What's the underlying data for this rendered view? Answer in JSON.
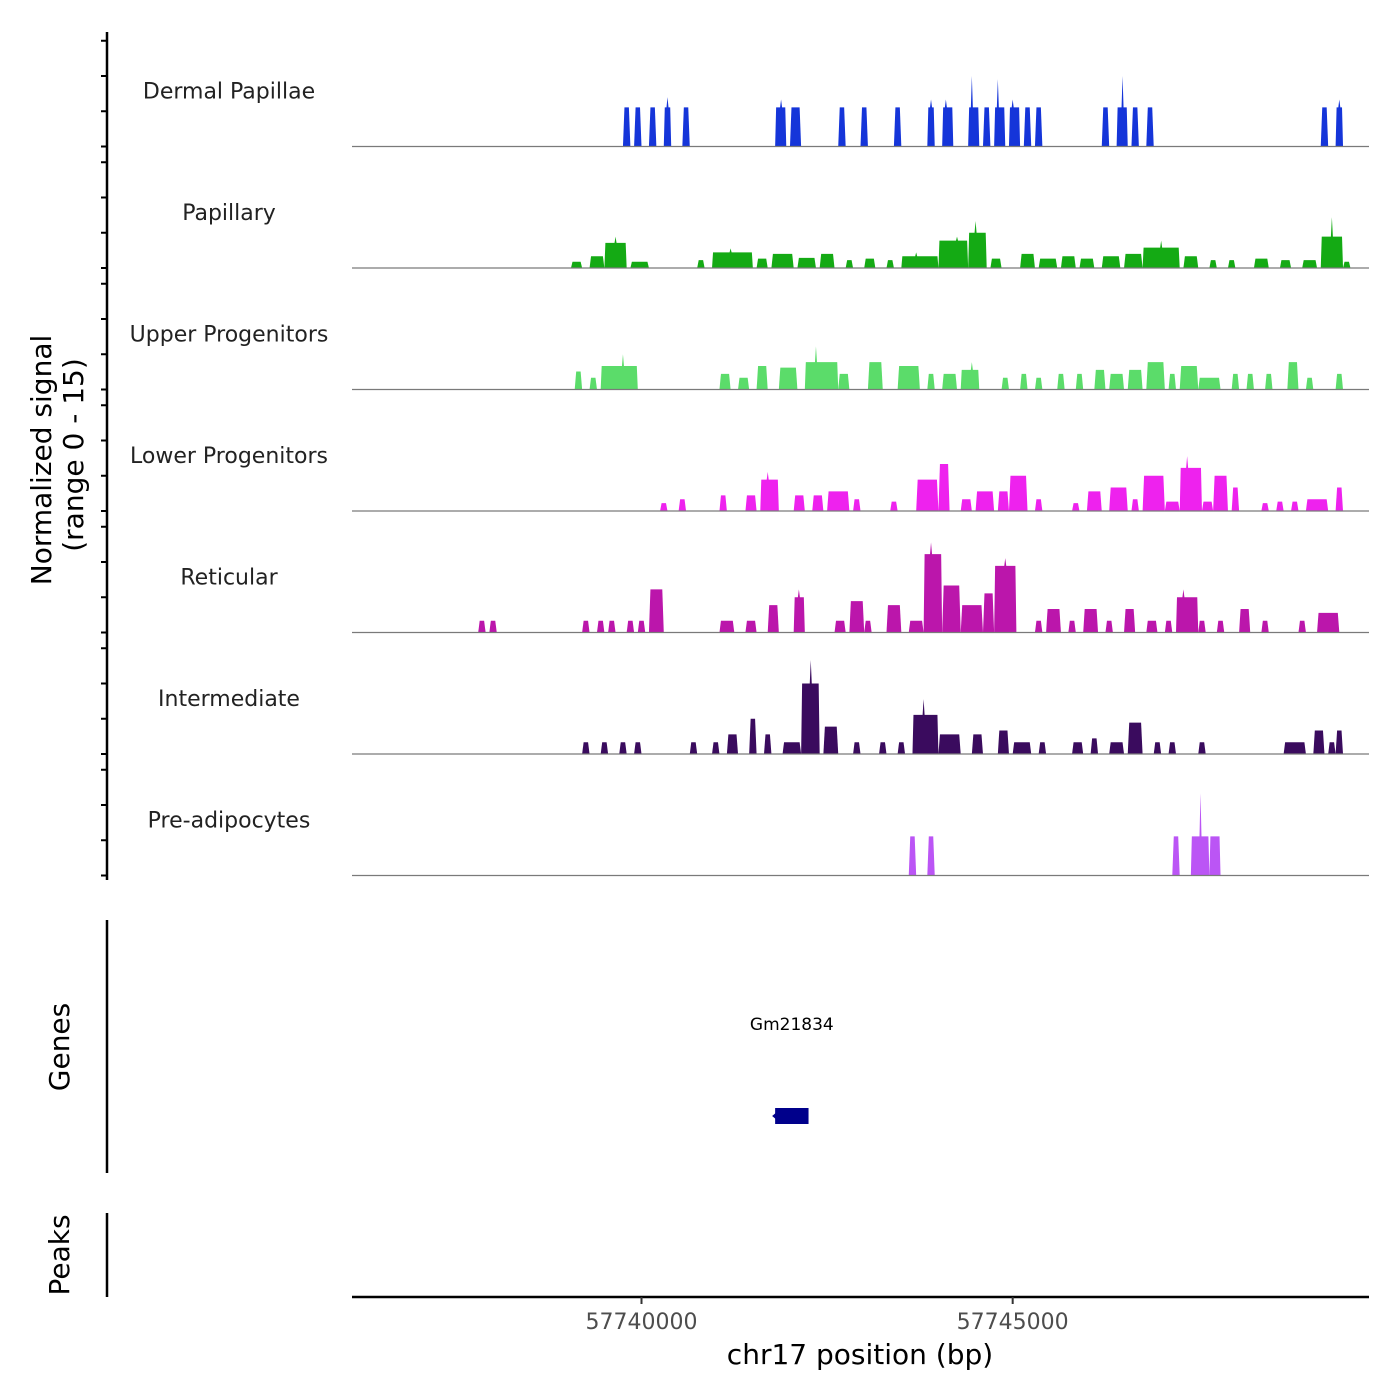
{
  "chart_data": {
    "type": "area",
    "title": "",
    "ylabel_line1": "Normalized signal",
    "ylabel_line2": "(range 0 - 15)",
    "xlabel": "chr17 position (bp)",
    "xlim": [
      57736100,
      57749800
    ],
    "ylim": [
      0,
      15
    ],
    "x_ticks": [
      57740000,
      57745000
    ],
    "x_tick_labels": [
      "57740000",
      "57745000"
    ],
    "tracks": [
      {
        "name": "Dermal Papillae",
        "color": "#1535d9",
        "segments": [
          [
            57739750,
            57739850,
            5
          ],
          [
            57739900,
            57740000,
            5
          ],
          [
            57740100,
            57740200,
            5
          ],
          [
            57740300,
            57740400,
            5,
            57740350,
            6.3
          ],
          [
            57740550,
            57740650,
            5
          ],
          [
            57741800,
            57741950,
            5,
            57741880,
            6
          ],
          [
            57742000,
            57742150,
            5
          ],
          [
            57742650,
            57742750,
            5
          ],
          [
            57742950,
            57743050,
            5
          ],
          [
            57743400,
            57743500,
            5
          ],
          [
            57743850,
            57743950,
            5,
            57743900,
            6
          ],
          [
            57744050,
            57744200,
            5,
            57744100,
            6
          ],
          [
            57744400,
            57744550,
            5,
            57744450,
            9
          ],
          [
            57744600,
            57744700,
            5
          ],
          [
            57744750,
            57744900,
            5,
            57744800,
            8.6
          ],
          [
            57744950,
            57745100,
            5,
            57745000,
            6
          ],
          [
            57745150,
            57745250,
            5
          ],
          [
            57745300,
            57745400,
            5
          ],
          [
            57746200,
            57746300,
            5
          ],
          [
            57746400,
            57746550,
            5,
            57746480,
            9
          ],
          [
            57746600,
            57746700,
            5
          ],
          [
            57746800,
            57746900,
            5
          ],
          [
            57749150,
            57749250,
            5
          ],
          [
            57749350,
            57749450,
            5,
            57749400,
            6
          ]
        ]
      },
      {
        "name": "Papillary",
        "color": "#14aa14",
        "segments": [
          [
            57739050,
            57739200,
            0.8
          ],
          [
            57739300,
            57739500,
            1.5
          ],
          [
            57739500,
            57739800,
            3.2,
            57739650,
            4
          ],
          [
            57739850,
            57740100,
            0.8
          ],
          [
            57740750,
            57740850,
            1
          ],
          [
            57740950,
            57741500,
            2,
            57741200,
            2.5
          ],
          [
            57741550,
            57741700,
            1.2
          ],
          [
            57741750,
            57742050,
            1.8
          ],
          [
            57742100,
            57742350,
            1.3
          ],
          [
            57742400,
            57742600,
            1.8
          ],
          [
            57742750,
            57742850,
            1
          ],
          [
            57743000,
            57743150,
            1.2
          ],
          [
            57743300,
            57743400,
            1
          ],
          [
            57743500,
            57744000,
            1.5,
            57743700,
            2
          ],
          [
            57744000,
            57744400,
            3.5,
            57744250,
            4
          ],
          [
            57744400,
            57744650,
            4.5,
            57744500,
            6
          ],
          [
            57744700,
            57744850,
            1.2
          ],
          [
            57745100,
            57745300,
            1.8
          ],
          [
            57745350,
            57745600,
            1.2
          ],
          [
            57745650,
            57745850,
            1.5
          ],
          [
            57745900,
            57746100,
            1.2
          ],
          [
            57746200,
            57746450,
            1.5
          ],
          [
            57746500,
            57746750,
            1.8
          ],
          [
            57746750,
            57747250,
            2.6,
            57747000,
            3.5
          ],
          [
            57747300,
            57747500,
            1.5
          ],
          [
            57747650,
            57747750,
            1
          ],
          [
            57747900,
            57748000,
            1
          ],
          [
            57748250,
            57748450,
            1.2
          ],
          [
            57748600,
            57748750,
            1
          ],
          [
            57748900,
            57749100,
            1
          ],
          [
            57749150,
            57749450,
            4,
            57749300,
            6.5
          ],
          [
            57749450,
            57749550,
            0.8
          ]
        ]
      },
      {
        "name": "Upper Progenitors",
        "color": "#5bdc6a",
        "segments": [
          [
            57739100,
            57739200,
            2.3
          ],
          [
            57739300,
            57739400,
            1.5
          ],
          [
            57739450,
            57739950,
            3,
            57739750,
            4.5
          ],
          [
            57741050,
            57741200,
            2
          ],
          [
            57741300,
            57741450,
            1.5
          ],
          [
            57741550,
            57741700,
            3
          ],
          [
            57741850,
            57742100,
            2.8
          ],
          [
            57742200,
            57742650,
            3.5,
            57742350,
            5.5
          ],
          [
            57742650,
            57742800,
            2
          ],
          [
            57743050,
            57743250,
            3.5
          ],
          [
            57743450,
            57743750,
            3
          ],
          [
            57743850,
            57743950,
            2
          ],
          [
            57744050,
            57744250,
            2
          ],
          [
            57744300,
            57744550,
            2.5,
            57744450,
            3.5
          ],
          [
            57744850,
            57744950,
            1.5
          ],
          [
            57745100,
            57745200,
            2
          ],
          [
            57745300,
            57745400,
            1.5
          ],
          [
            57745600,
            57745700,
            2
          ],
          [
            57745850,
            57745950,
            2
          ],
          [
            57746100,
            57746250,
            2.5
          ],
          [
            57746300,
            57746500,
            2
          ],
          [
            57746550,
            57746750,
            2.5
          ],
          [
            57746800,
            57747050,
            3.5
          ],
          [
            57747100,
            57747200,
            2
          ],
          [
            57747250,
            57747500,
            3
          ],
          [
            57747500,
            57747800,
            1.5
          ],
          [
            57747950,
            57748050,
            2
          ],
          [
            57748150,
            57748250,
            2
          ],
          [
            57748400,
            57748500,
            2
          ],
          [
            57748700,
            57748850,
            3.5
          ],
          [
            57748950,
            57749050,
            1.5
          ],
          [
            57749350,
            57749450,
            2
          ]
        ]
      },
      {
        "name": "Lower Progenitors",
        "color": "#ee22ee",
        "segments": [
          [
            57740250,
            57740350,
            1
          ],
          [
            57740500,
            57740600,
            1.5
          ],
          [
            57741050,
            57741150,
            2
          ],
          [
            57741400,
            57741550,
            2
          ],
          [
            57741600,
            57741850,
            4,
            57741700,
            5
          ],
          [
            57742050,
            57742200,
            2
          ],
          [
            57742300,
            57742450,
            2
          ],
          [
            57742500,
            57742800,
            2.5
          ],
          [
            57742850,
            57742950,
            1.5
          ],
          [
            57743350,
            57743450,
            1.2
          ],
          [
            57743700,
            57744000,
            4
          ],
          [
            57744000,
            57744150,
            6
          ],
          [
            57744300,
            57744450,
            1.5
          ],
          [
            57744500,
            57744750,
            2.5
          ],
          [
            57744800,
            57744950,
            2.5
          ],
          [
            57744950,
            57745200,
            4.5
          ],
          [
            57745300,
            57745400,
            1.5
          ],
          [
            57745800,
            57745900,
            1
          ],
          [
            57746000,
            57746200,
            2.5
          ],
          [
            57746300,
            57746550,
            3
          ],
          [
            57746600,
            57746700,
            1.5
          ],
          [
            57746750,
            57747050,
            4.5
          ],
          [
            57747050,
            57747250,
            1.2
          ],
          [
            57747250,
            57747550,
            5.5,
            57747350,
            7
          ],
          [
            57747550,
            57747700,
            1.2
          ],
          [
            57747700,
            57747900,
            4.5
          ],
          [
            57747950,
            57748050,
            3
          ],
          [
            57748350,
            57748450,
            1
          ],
          [
            57748550,
            57748650,
            1.2
          ],
          [
            57748750,
            57748850,
            1.2
          ],
          [
            57748950,
            57749250,
            1.5
          ],
          [
            57749350,
            57749450,
            3
          ]
        ]
      },
      {
        "name": "Reticular",
        "color": "#bb16ab",
        "segments": [
          [
            57737800,
            57737900,
            1.5
          ],
          [
            57737950,
            57738050,
            1.5
          ],
          [
            57739200,
            57739300,
            1.5
          ],
          [
            57739400,
            57739500,
            1.5
          ],
          [
            57739550,
            57739650,
            1.5
          ],
          [
            57739800,
            57739900,
            1.5
          ],
          [
            57739950,
            57740050,
            1.5
          ],
          [
            57740100,
            57740300,
            5.5
          ],
          [
            57741050,
            57741250,
            1.5
          ],
          [
            57741400,
            57741550,
            1.5
          ],
          [
            57741700,
            57741850,
            3.5
          ],
          [
            57742050,
            57742200,
            4.5,
            57742120,
            5.5
          ],
          [
            57742600,
            57742750,
            1.5
          ],
          [
            57742800,
            57743000,
            4
          ],
          [
            57743000,
            57743100,
            1.5
          ],
          [
            57743300,
            57743500,
            3.5
          ],
          [
            57743600,
            57743800,
            1.5
          ],
          [
            57743800,
            57744050,
            10,
            57743900,
            11.5
          ],
          [
            57744050,
            57744300,
            6
          ],
          [
            57744300,
            57744600,
            3.5
          ],
          [
            57744600,
            57744750,
            5
          ],
          [
            57744750,
            57745050,
            8.5,
            57744900,
            9.5
          ],
          [
            57745300,
            57745400,
            1.5
          ],
          [
            57745450,
            57745650,
            3
          ],
          [
            57745750,
            57745850,
            1.5
          ],
          [
            57745950,
            57746150,
            3
          ],
          [
            57746250,
            57746350,
            1.5
          ],
          [
            57746500,
            57746650,
            3
          ],
          [
            57746800,
            57746950,
            1.5
          ],
          [
            57747050,
            57747150,
            1.5
          ],
          [
            57747200,
            57747500,
            4.5,
            57747300,
            5.5
          ],
          [
            57747500,
            57747600,
            1.5
          ],
          [
            57747750,
            57747850,
            1.5
          ],
          [
            57748050,
            57748200,
            3
          ],
          [
            57748350,
            57748450,
            1.5
          ],
          [
            57748850,
            57748950,
            1.5
          ],
          [
            57749100,
            57749400,
            2.5
          ]
        ]
      },
      {
        "name": "Intermediate",
        "color": "#3a0b5e",
        "segments": [
          [
            57739200,
            57739300,
            1.5
          ],
          [
            57739450,
            57739550,
            1.5
          ],
          [
            57739700,
            57739800,
            1.5
          ],
          [
            57739900,
            57740000,
            1.5
          ],
          [
            57740650,
            57740750,
            1.5
          ],
          [
            57740950,
            57741050,
            1.5
          ],
          [
            57741150,
            57741300,
            2.5
          ],
          [
            57741450,
            57741550,
            4.5
          ],
          [
            57741650,
            57741750,
            2.5
          ],
          [
            57741900,
            57742150,
            1.5
          ],
          [
            57742150,
            57742400,
            9,
            57742280,
            12
          ],
          [
            57742450,
            57742650,
            3.5
          ],
          [
            57742850,
            57742950,
            1.5
          ],
          [
            57743200,
            57743300,
            1.5
          ],
          [
            57743450,
            57743550,
            1.5
          ],
          [
            57743650,
            57744000,
            5,
            57743800,
            7
          ],
          [
            57744000,
            57744300,
            2.5
          ],
          [
            57744450,
            57744600,
            2.5
          ],
          [
            57744800,
            57744950,
            3
          ],
          [
            57745000,
            57745250,
            1.5
          ],
          [
            57745350,
            57745450,
            1.5
          ],
          [
            57745800,
            57745950,
            1.5
          ],
          [
            57746050,
            57746150,
            2
          ],
          [
            57746300,
            57746500,
            1.5
          ],
          [
            57746550,
            57746750,
            4
          ],
          [
            57746900,
            57747000,
            1.5
          ],
          [
            57747100,
            57747200,
            1.5
          ],
          [
            57747500,
            57747600,
            1.5
          ],
          [
            57748650,
            57748950,
            1.5
          ],
          [
            57749050,
            57749200,
            3
          ],
          [
            57749250,
            57749350,
            1.5
          ],
          [
            57749350,
            57749450,
            3
          ]
        ]
      },
      {
        "name": "Pre-adipocytes",
        "color": "#bb55f5",
        "segments": [
          [
            57743600,
            57743700,
            5
          ],
          [
            57743850,
            57743950,
            5
          ],
          [
            57747150,
            57747250,
            5
          ],
          [
            57747400,
            57747650,
            5,
            57747530,
            10.5
          ],
          [
            57747650,
            57747800,
            5,
            57747800,
            5
          ]
        ]
      }
    ],
    "genes_track_label": "Genes",
    "peaks_track_label": "Peaks",
    "genes": [
      {
        "name": "Gm21834",
        "start": 57741800,
        "end": 57742250,
        "strand": "-",
        "color": "#00008b"
      }
    ]
  }
}
